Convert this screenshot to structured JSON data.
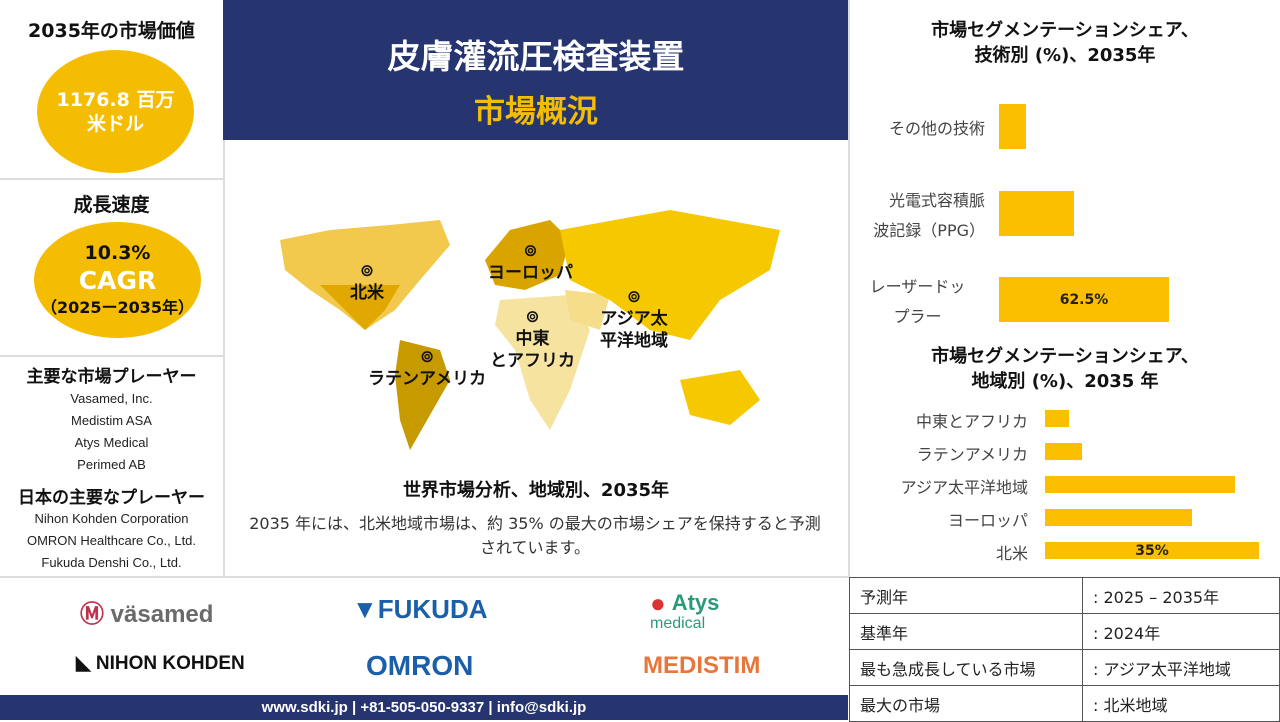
{
  "left": {
    "value_title": "2035年の市場価値",
    "value_line1": "1176.8 百万",
    "value_line2": "米ドル",
    "growth_title": "成長速度",
    "growth_pct": "10.3%",
    "growth_cagr": "CAGR",
    "growth_period": "（2025ー2035年）",
    "players_title": "主要な市場プレーヤー",
    "players": [
      "Vasamed, Inc.",
      "Medistim ASA",
      "Atys Medical",
      "Perimed AB"
    ],
    "jp_players_title": "日本の主要なプレーヤー",
    "jp_players": [
      "Nihon Kohden Corporation",
      "OMRON Healthcare Co., Ltd.",
      "Fukuda Denshi Co., Ltd."
    ]
  },
  "header": {
    "title": "皮膚灌流圧検査装置",
    "subtitle": "市場概況"
  },
  "map": {
    "regions": [
      "北米",
      "ヨーロッパ",
      "中東\nとアフリカ",
      "アジア太\n平洋地域",
      "ラテンアメリカ"
    ],
    "caption": "世界市場分析、地域別、2035年",
    "description": "2035 年には、北米地域市場は、約 35% の最大の市場シェアを保持すると予測されています。"
  },
  "logos": [
    "väsamed",
    "FUKUDA",
    "Atys",
    "medical",
    "NIHON KOHDEN",
    "OMRON",
    "MEDISTIM"
  ],
  "footer": "www.sdki.jp | +81-505-050-9337 | info@sdki.jp",
  "colors": {
    "navy": "#263470",
    "accent": "#f5bd02"
  },
  "chart_data": [
    {
      "type": "bar",
      "orientation": "horizontal",
      "title": "市場セグメンテーションシェア、\n技術別 (%)、2035年",
      "categories": [
        "その他の技術",
        "光電式容積脈\n波記録（PPG）",
        "レーザードッ\nプラー"
      ],
      "values": [
        10,
        27.5,
        62.5
      ],
      "data_labels": [
        "",
        "",
        "62.5%"
      ]
    },
    {
      "type": "bar",
      "orientation": "horizontal",
      "title": "市場セグメンテーションシェア、\n地域別 (%)、2035 年",
      "categories": [
        "中東とアフリカ",
        "ラテンアメリカ",
        "アジア太平洋地域",
        "ヨーロッパ",
        "北米"
      ],
      "values": [
        4,
        6,
        31,
        24,
        35
      ],
      "data_labels": [
        "",
        "",
        "",
        "",
        "35%"
      ]
    }
  ],
  "table": [
    [
      "予測年",
      ": 2025 – 2035年"
    ],
    [
      "基準年",
      ": 2024年"
    ],
    [
      "最も急成長している市場",
      ": アジア太平洋地域"
    ],
    [
      "最大の市場",
      ": 北米地域"
    ]
  ]
}
